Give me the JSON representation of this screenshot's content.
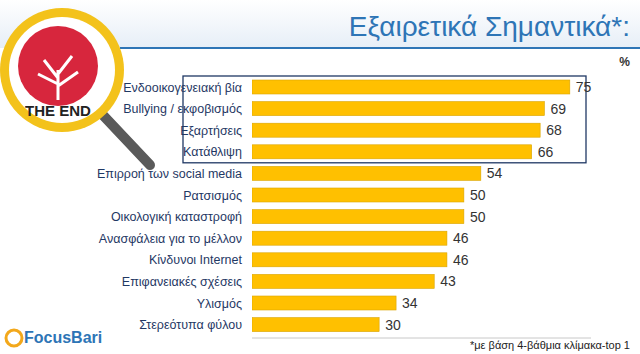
{
  "chart_data": {
    "type": "bar",
    "title": "Εξαιρετικά Σημαντικά*:",
    "unit": "%",
    "footnote": "*με βάση 4-βάθμια κλίμακα-top 1",
    "logo_text": "THE END",
    "brand": "FocusBari",
    "categories": [
      "Ενδοοικογενειακή βία",
      "Bullying / εκφοβισμός",
      "Εξαρτήσεις",
      "Κατάθλιψη",
      "Επιρροή των social media",
      "Ρατσισμός",
      "Οικολογική καταστροφή",
      "Ανασφάλεια για το μέλλον",
      "Κίνδυνοι Internet",
      "Επιφανειακές σχέσεις",
      "Υλισμός",
      "Στερεότυπα φύλου"
    ],
    "values": [
      75,
      69,
      68,
      66,
      54,
      50,
      50,
      46,
      46,
      43,
      34,
      30
    ],
    "color": "#ffc000",
    "orientation": "horizontal",
    "data_labels": true,
    "tick_labels": false,
    "xlim": [
      0,
      80
    ]
  }
}
